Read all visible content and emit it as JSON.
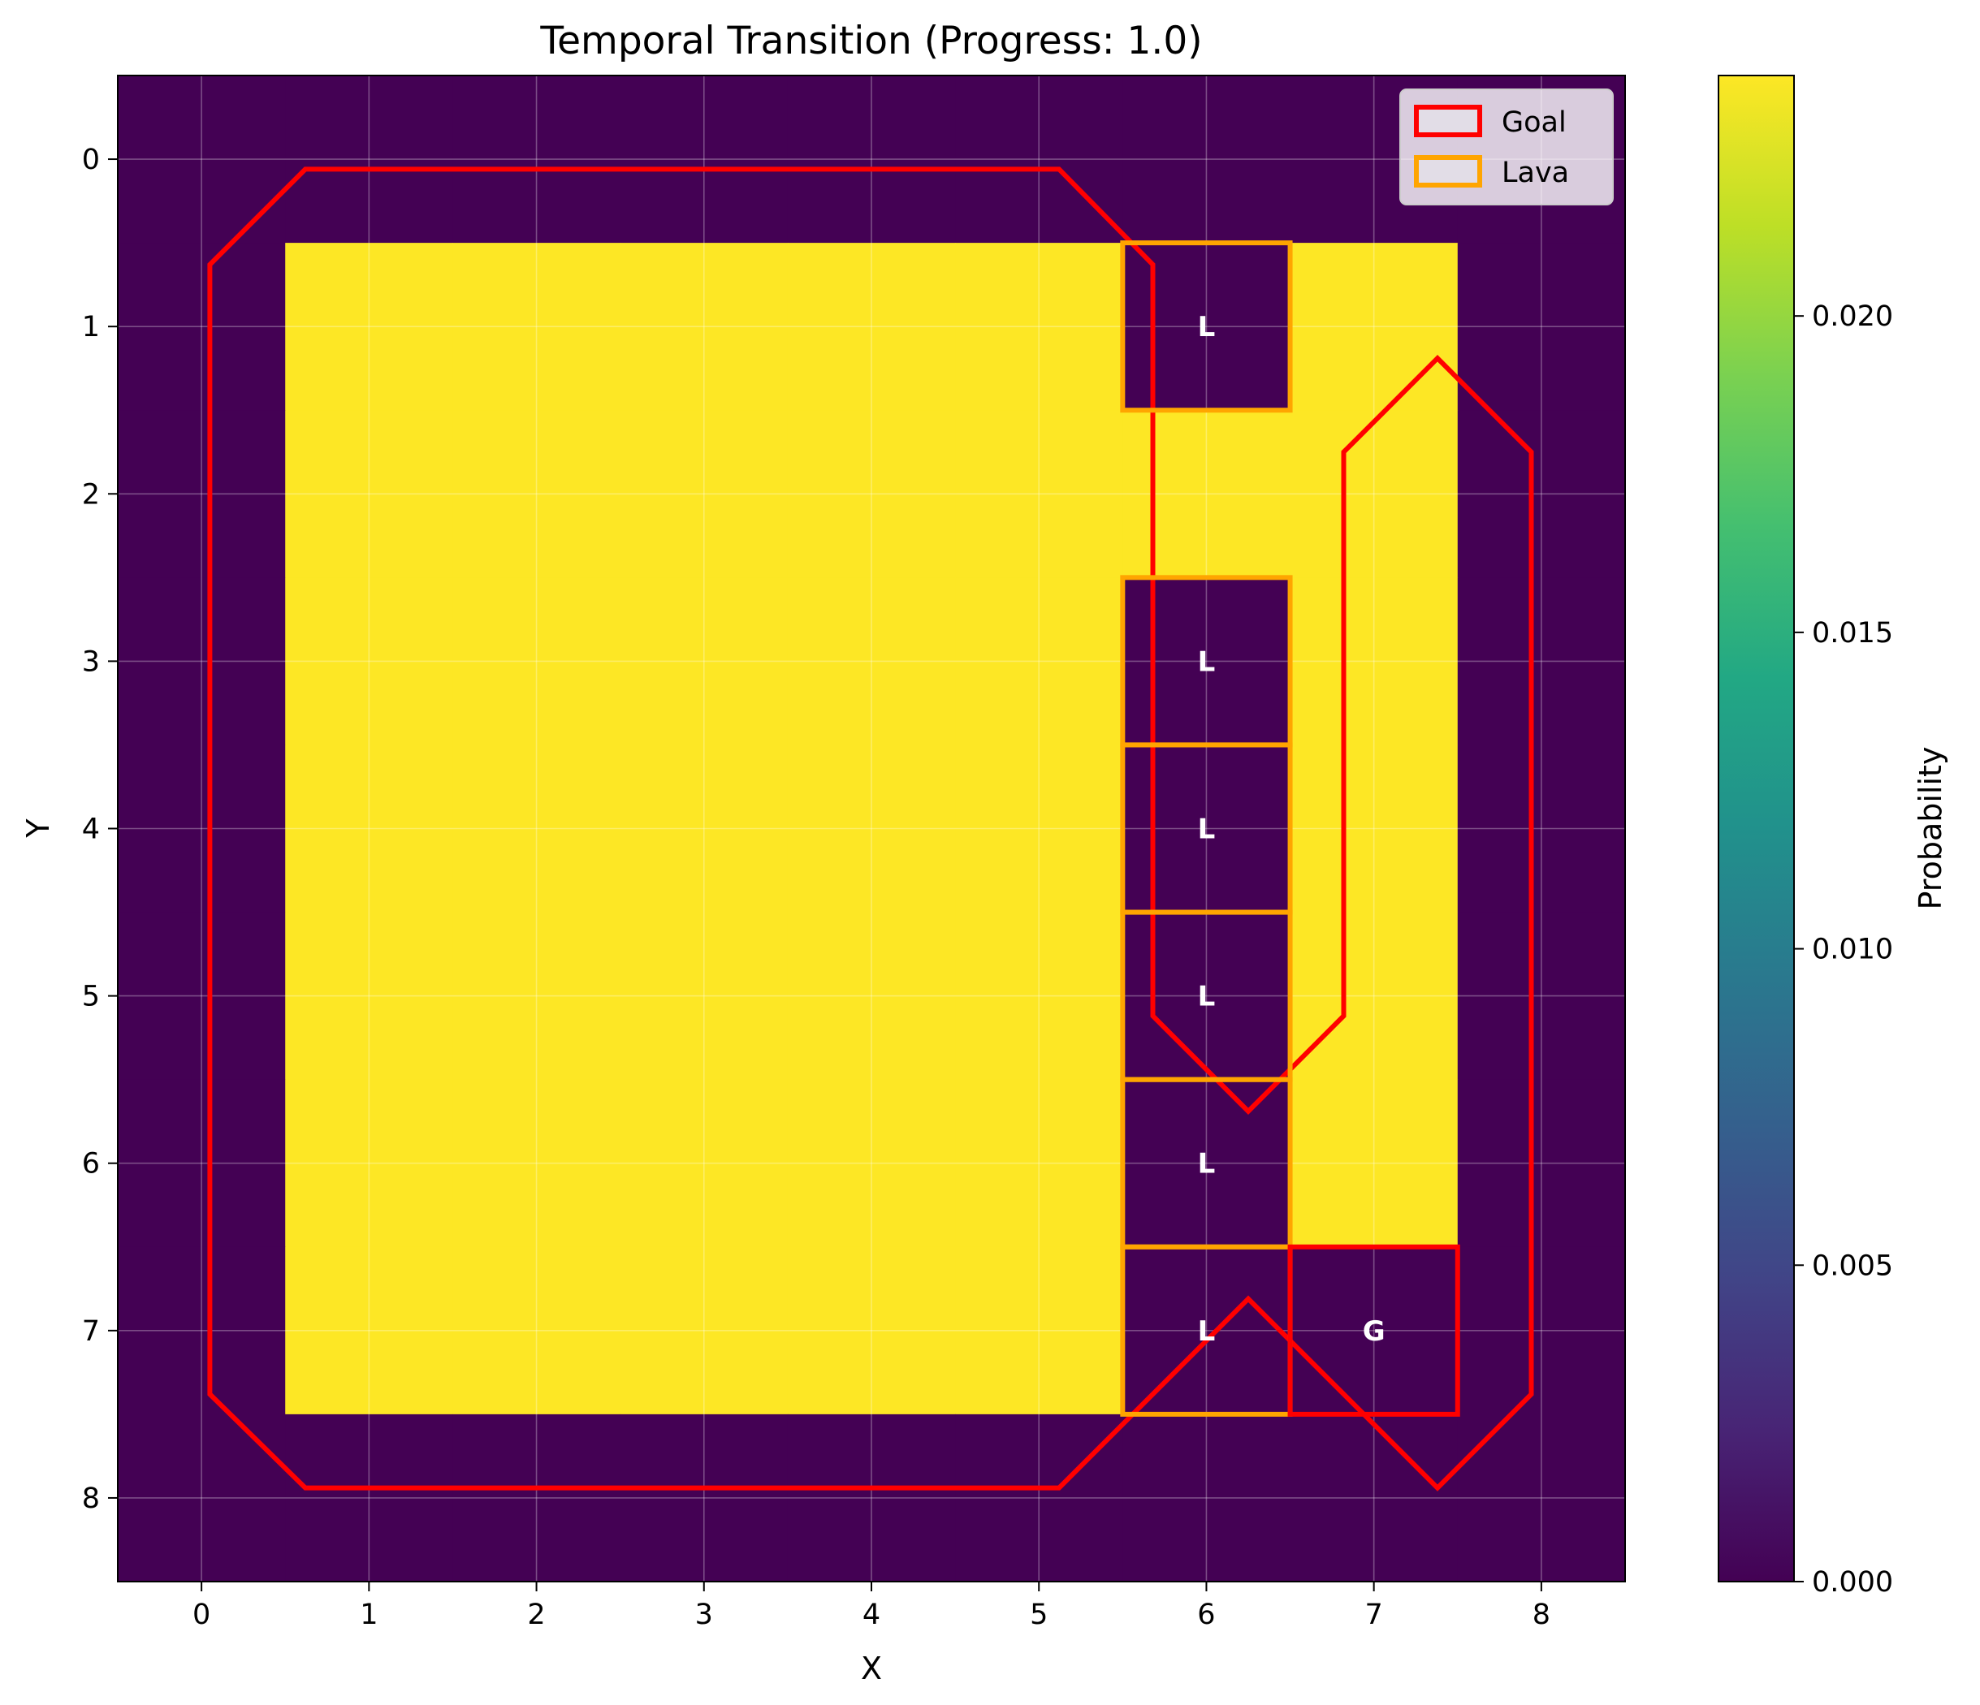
{
  "chart_data": {
    "type": "heatmap",
    "title": "Temporal Transition (Progress: 1.0)",
    "xlabel": "X",
    "ylabel": "Y",
    "grid_size": [
      9,
      9
    ],
    "x_ticks": [
      "0",
      "1",
      "2",
      "3",
      "4",
      "5",
      "6",
      "7",
      "8"
    ],
    "y_ticks": [
      "0",
      "1",
      "2",
      "3",
      "4",
      "5",
      "6",
      "7",
      "8"
    ],
    "xlim": [
      -0.5,
      8.5
    ],
    "ylim": [
      8.5,
      -0.5
    ],
    "grid": true,
    "colormap": "viridis",
    "colorbar": {
      "label": "Probability",
      "range": [
        0.0,
        0.0238
      ],
      "ticks": [
        "0.000",
        "0.005",
        "0.010",
        "0.015",
        "0.020"
      ],
      "tick_values": [
        0.0,
        0.005,
        0.01,
        0.015,
        0.02
      ]
    },
    "values": [
      [
        0,
        0,
        0,
        0,
        0,
        0,
        0,
        0,
        0
      ],
      [
        0,
        0.0238,
        0.0238,
        0.0238,
        0.0238,
        0.0238,
        0,
        0.0238,
        0
      ],
      [
        0,
        0.0238,
        0.0238,
        0.0238,
        0.0238,
        0.0238,
        0.0238,
        0.0238,
        0
      ],
      [
        0,
        0.0238,
        0.0238,
        0.0238,
        0.0238,
        0.0238,
        0,
        0.0238,
        0
      ],
      [
        0,
        0.0238,
        0.0238,
        0.0238,
        0.0238,
        0.0238,
        0,
        0.0238,
        0
      ],
      [
        0,
        0.0238,
        0.0238,
        0.0238,
        0.0238,
        0.0238,
        0,
        0.0238,
        0
      ],
      [
        0,
        0.0238,
        0.0238,
        0.0238,
        0.0238,
        0.0238,
        0,
        0.0238,
        0
      ],
      [
        0,
        0.0238,
        0.0238,
        0.0238,
        0.0238,
        0.0238,
        0,
        0,
        0
      ],
      [
        0,
        0,
        0,
        0,
        0,
        0,
        0,
        0,
        0
      ]
    ],
    "lava_cells": [
      [
        6,
        1
      ],
      [
        6,
        3
      ],
      [
        6,
        4
      ],
      [
        6,
        5
      ],
      [
        6,
        6
      ],
      [
        6,
        7
      ]
    ],
    "lava_label": "L",
    "goal_cell": [
      7,
      7
    ],
    "goal_label": "G",
    "regions": [
      {
        "kind": "goal",
        "points": [
          [
            0.05,
            0.63
          ],
          [
            0.62,
            0.06
          ],
          [
            5.12,
            0.06
          ],
          [
            5.68,
            0.63
          ],
          [
            5.68,
            5.12
          ],
          [
            6.25,
            5.69
          ],
          [
            6.82,
            5.12
          ],
          [
            6.82,
            1.75
          ],
          [
            7.38,
            1.19
          ],
          [
            7.94,
            1.75
          ],
          [
            7.94,
            7.38
          ],
          [
            7.38,
            7.94
          ],
          [
            6.25,
            6.81
          ],
          [
            5.12,
            7.94
          ],
          [
            0.62,
            7.94
          ],
          [
            0.05,
            7.38
          ]
        ]
      }
    ],
    "legend": {
      "position": "top-right",
      "entries": [
        {
          "label": "Goal",
          "color": "#ff0000"
        },
        {
          "label": "Lava",
          "color": "#ffa500"
        }
      ]
    },
    "colors": {
      "low": "#440154",
      "high": "#fde725",
      "goal": "#ff0000",
      "lava": "#ffa500"
    }
  }
}
